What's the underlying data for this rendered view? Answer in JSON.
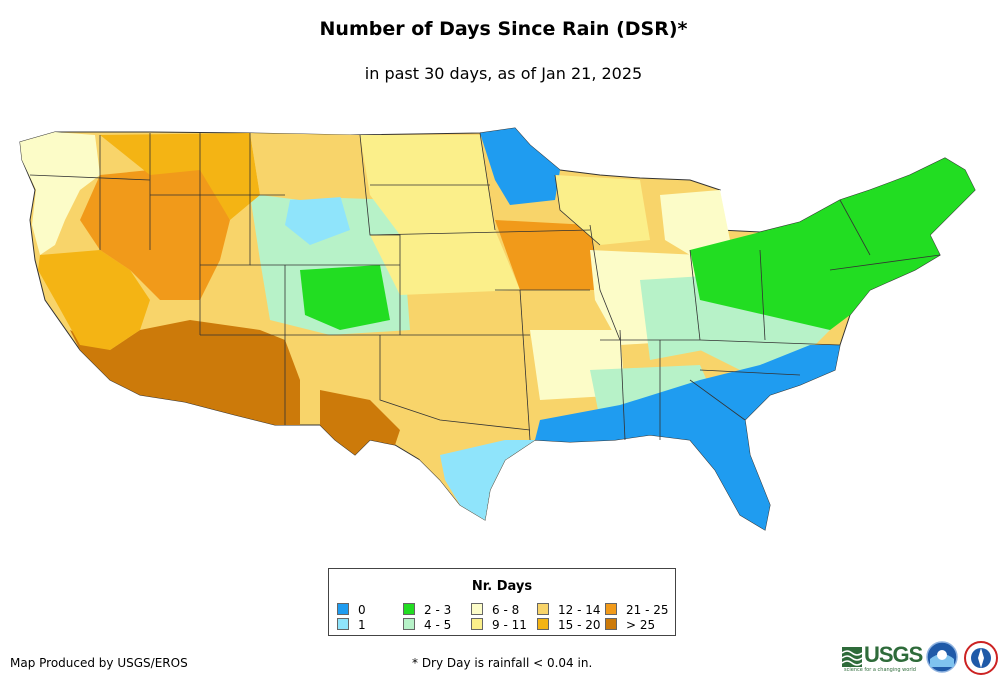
{
  "header": {
    "title": "Number of Days Since Rain (DSR)*",
    "subtitle": "in past 30 days, as of Jan 21, 2025"
  },
  "legend": {
    "title": "Nr. Days",
    "items": [
      {
        "label": "0",
        "color": "#1f9cf0"
      },
      {
        "label": "1",
        "color": "#8fe4fb"
      },
      {
        "label": "2 - 3",
        "color": "#22dd22"
      },
      {
        "label": "4 - 5",
        "color": "#b7f2c8"
      },
      {
        "label": "6 - 8",
        "color": "#fcfcc8"
      },
      {
        "label": "9 - 11",
        "color": "#fbef8a"
      },
      {
        "label": "12 - 14",
        "color": "#f8d46a"
      },
      {
        "label": "15 - 20",
        "color": "#f4b414"
      },
      {
        "label": "21 - 25",
        "color": "#f19a1a"
      },
      {
        "label": "> 25",
        "color": "#cc7a0a"
      }
    ]
  },
  "footer": {
    "credit": "Map Produced by USGS/EROS",
    "note": "* Dry Day is rainfall < 0.04 in."
  },
  "logos": {
    "usgs": "USGS",
    "usgs_tagline": "science for a changing world"
  }
}
